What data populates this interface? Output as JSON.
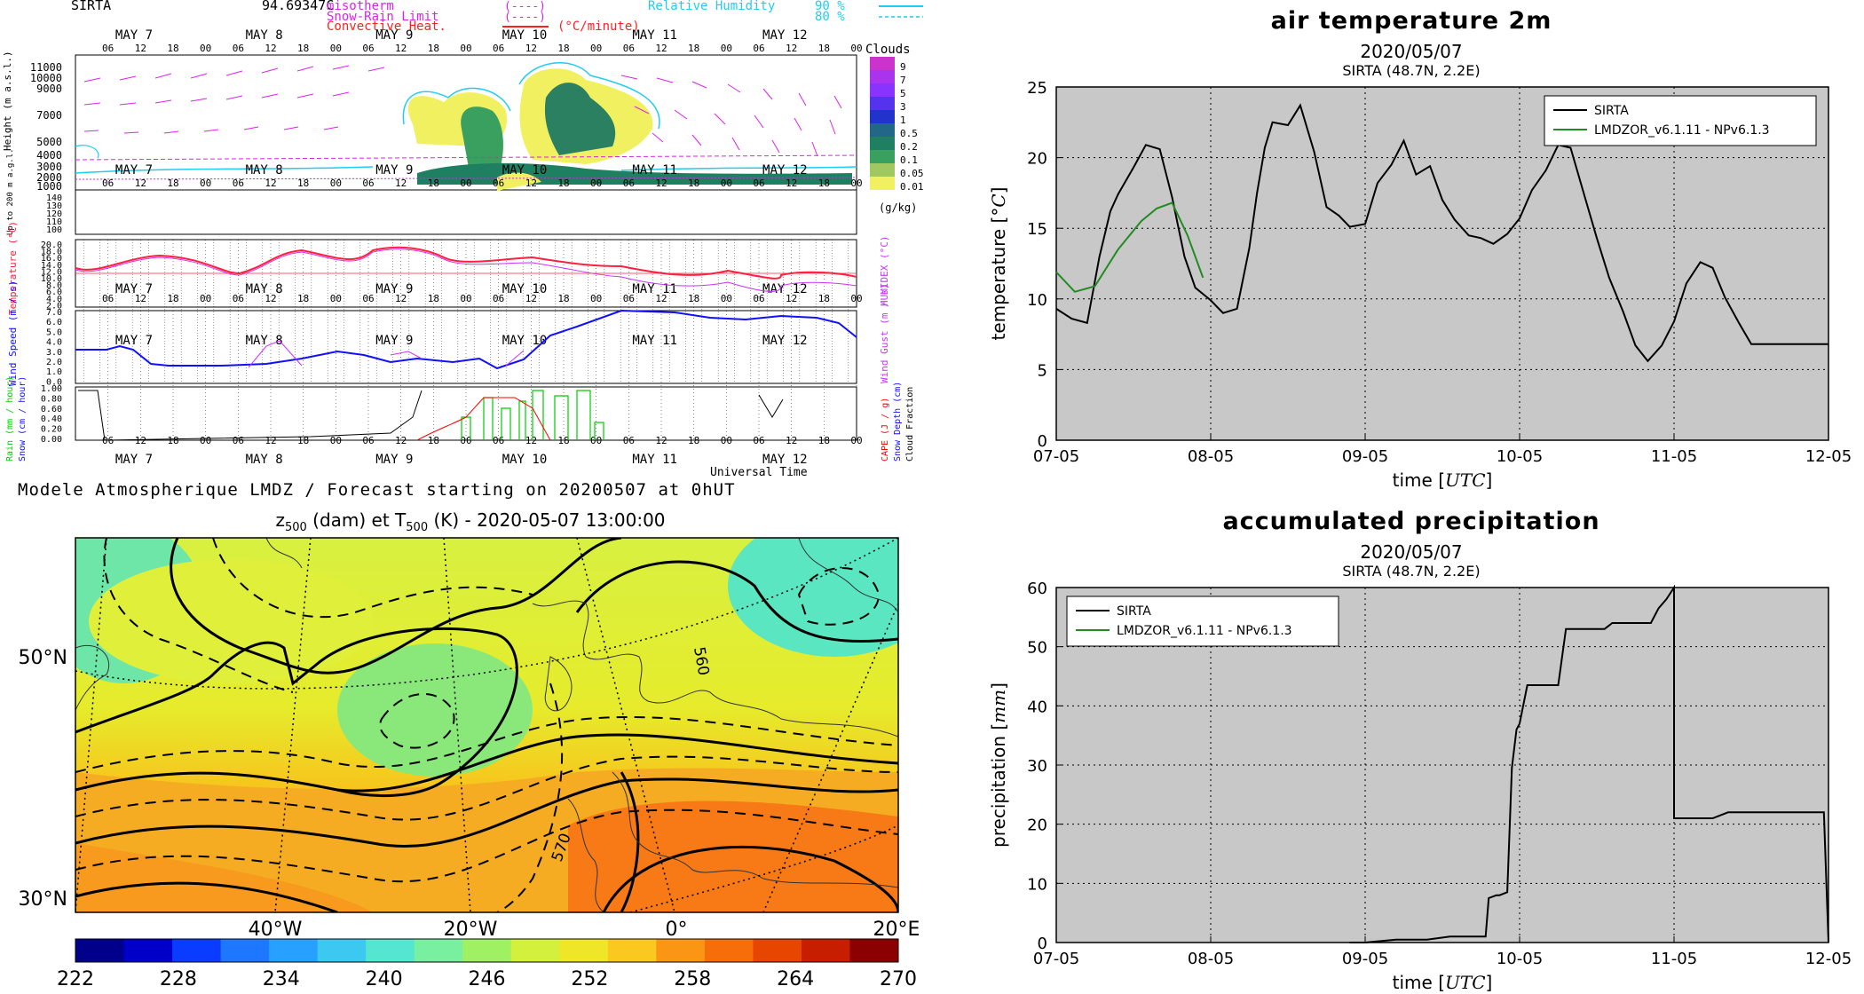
{
  "meteogram": {
    "station": "SIRTA",
    "elevation_text": "94.69347C",
    "legend": {
      "isotherm": "misotherm",
      "snow_rain": "Snow-Rain Limit",
      "convective": "Convective Heat.",
      "convective_unit": "(°C/minute)",
      "humidity": "Relative Humidity",
      "rh_90": "90 %",
      "rh_80": "80 %",
      "dashes": "(----)"
    },
    "day_labels": [
      "MAY  7",
      "MAY  8",
      "MAY  9",
      "MAY 10",
      "MAY 11",
      "MAY 12"
    ],
    "hour_labels": [
      "06",
      "12",
      "18",
      "00"
    ],
    "height_label": "Height (m a.s.l.)",
    "height_ticks": [
      "11000",
      "10000",
      "9000",
      "7000",
      "5000",
      "4000",
      "3000",
      "2000",
      "1000"
    ],
    "low_label": "Up to 200 m a.g.l.",
    "low_ticks": [
      "140",
      "130",
      "120",
      "110",
      "100"
    ],
    "clouds_title": "Clouds",
    "clouds_ticks": [
      "9",
      "7",
      "5",
      "3",
      "1",
      "0.5",
      "0.2",
      "0.1",
      "0.05",
      "0.01"
    ],
    "clouds_unit": "(g/kg)",
    "temp_label": "Temperature (°C)",
    "temp_ticks": [
      "20.0",
      "18.0",
      "16.0",
      "14.0",
      "12.0",
      "10.0",
      "8.0",
      "6.0",
      "4.0",
      "2.0"
    ],
    "humidex_label": "HUMIDEX (°C)",
    "wind_label": "Wind Speed (m / s)",
    "wind_ticks": [
      "7.0",
      "6.0",
      "5.0",
      "4.0",
      "3.0",
      "2.0",
      "1.0",
      "0.0"
    ],
    "gust_label": "Wind Gust (m / s)",
    "rain_ticks": [
      "1.00",
      "0.80",
      "0.60",
      "0.40",
      "0.20",
      "0.00"
    ],
    "rain_label": "Rain (mm / hour)",
    "snow_label": "Snow (cm / hour)",
    "cape_label": "CAPE (J / g)",
    "snowdepth_label": "Snow Depth (cm)",
    "cloudfrac_label": "Cloud Fraction",
    "universal_time": "Universal Time",
    "footer": "Modele Atmospherique LMDZ / Forecast starting on 20200507 at 0hUT",
    "colors": {
      "temperature": "#ff2040",
      "humidex": "#cc33ff",
      "wind": "#1010ff",
      "gust": "#cc33ff",
      "cloud_fraction": "#000000",
      "rain": "#00cc00",
      "cape": "#ff0000"
    }
  },
  "map": {
    "title_pre": "z",
    "title_sub1": "500",
    "title_mid": " (dam) et T",
    "title_sub2": "500",
    "title_post": " (K) - 2020-05-07 13:00:00",
    "lat_labels": [
      "50°N",
      "30°N"
    ],
    "lon_labels": [
      "40°W",
      "20°W",
      "0°",
      "20°E"
    ],
    "contour_labels": [
      "560",
      "570"
    ],
    "colorbar_ticks": [
      "222",
      "228",
      "234",
      "240",
      "246",
      "252",
      "258",
      "264",
      "270"
    ],
    "colorbar_colors": [
      "#00008b",
      "#0000c8",
      "#0a3cff",
      "#1e78ff",
      "#28a0ff",
      "#3cc8f0",
      "#55e6d2",
      "#78f0a0",
      "#a0f064",
      "#d2f03c",
      "#f0e628",
      "#fac81e",
      "#fa9614",
      "#f56e0a",
      "#e64600",
      "#c81e00",
      "#8b0000"
    ]
  },
  "chart_data": [
    {
      "type": "line",
      "title": "air temperature 2m",
      "subtitle": "2020/05/07",
      "subtitle2": "SIRTA (48.7N, 2.2E)",
      "xlabel": "time [UTC]",
      "ylabel": "temperature [°C]",
      "xlabel_parts": [
        "time ",
        "[",
        "UTC",
        "]"
      ],
      "ylabel_parts": [
        "temperature ",
        "[",
        "°C",
        "]"
      ],
      "x_ticks": [
        "07-05",
        "08-05",
        "09-05",
        "10-05",
        "11-05",
        "12-05"
      ],
      "ylim": [
        0,
        25
      ],
      "y_ticks": [
        "0",
        "5",
        "10",
        "15",
        "20",
        "25"
      ],
      "grid": true,
      "legend_position": "top-right",
      "series": [
        {
          "name": "SIRTA",
          "color": "#000000",
          "x": [
            0,
            0.1,
            0.2,
            0.28,
            0.35,
            0.4,
            0.5,
            0.58,
            0.67,
            0.75,
            0.83,
            0.9,
            1.0,
            1.08,
            1.17,
            1.25,
            1.3,
            1.35,
            1.4,
            1.5,
            1.58,
            1.67,
            1.75,
            1.83,
            1.9,
            2.0,
            2.08,
            2.17,
            2.25,
            2.33,
            2.42,
            2.5,
            2.58,
            2.67,
            2.75,
            2.83,
            2.92,
            3.0,
            3.08,
            3.17,
            3.25,
            3.33,
            3.42,
            3.5,
            3.58,
            3.67,
            3.75,
            3.83,
            3.92,
            4.0,
            4.08,
            4.17,
            4.25,
            4.33,
            4.42,
            4.5,
            4.58,
            4.67,
            4.75,
            4.83,
            4.92,
            5.0
          ],
          "y": [
            9.3,
            8.6,
            8.3,
            13.0,
            16.2,
            17.4,
            19.3,
            20.9,
            20.6,
            17.2,
            13.0,
            10.8,
            9.9,
            9.0,
            9.3,
            13.6,
            17.5,
            20.7,
            22.5,
            22.3,
            23.7,
            20.4,
            16.5,
            15.9,
            15.1,
            15.3,
            18.2,
            19.5,
            21.2,
            18.8,
            19.4,
            17.0,
            15.6,
            14.5,
            14.3,
            13.9,
            14.6,
            15.7,
            17.7,
            19.1,
            20.9,
            20.7,
            17.3,
            14.3,
            11.5,
            9.1,
            6.7,
            5.6,
            6.7,
            8.4,
            11.1,
            12.6,
            12.2,
            10.1,
            8.3,
            6.8,
            6.8,
            6.8,
            6.8,
            6.8,
            6.8,
            6.8
          ]
        },
        {
          "name": "LMDZOR_v6.1.11 - NPv6.1.3",
          "color": "#228b22",
          "x": [
            0.0,
            0.12,
            0.25,
            0.4,
            0.55,
            0.65,
            0.75,
            0.85,
            0.95
          ],
          "y": [
            11.9,
            10.5,
            10.9,
            13.5,
            15.5,
            16.4,
            16.8,
            14.5,
            11.5
          ]
        }
      ]
    },
    {
      "type": "line",
      "title": "accumulated precipitation",
      "subtitle": "2020/05/07",
      "subtitle2": "SIRTA (48.7N, 2.2E)",
      "xlabel": "time [UTC]",
      "ylabel": "precipitation [mm]",
      "xlabel_parts": [
        "time ",
        "[",
        "UTC",
        "]"
      ],
      "ylabel_parts": [
        "precipitation ",
        "[",
        "mm",
        "]"
      ],
      "x_ticks": [
        "07-05",
        "08-05",
        "09-05",
        "10-05",
        "11-05",
        "12-05"
      ],
      "ylim": [
        0,
        60
      ],
      "y_ticks": [
        "0",
        "10",
        "20",
        "30",
        "40",
        "50",
        "60"
      ],
      "grid": true,
      "legend_position": "top-left",
      "series": [
        {
          "name": "SIRTA",
          "color": "#000000",
          "x": [
            1.9,
            2.0,
            2.2,
            2.4,
            2.55,
            2.6,
            2.65,
            2.78,
            2.8,
            2.85,
            2.87,
            2.92,
            2.95,
            2.98,
            3.0,
            3.05,
            3.1,
            3.25,
            3.3,
            3.3,
            3.35,
            3.55,
            3.6,
            3.6,
            3.85,
            3.9,
            3.95,
            4.0,
            4.0,
            4.05,
            4.15,
            4.25,
            4.35,
            4.95,
            4.97,
            5.0
          ],
          "y": [
            0,
            0,
            0.5,
            0.5,
            1,
            1,
            1,
            1,
            7.5,
            8,
            8,
            8.5,
            29.5,
            36,
            37,
            43.5,
            43.5,
            43.5,
            53,
            53,
            53,
            53,
            54,
            54,
            54,
            56.5,
            58,
            60,
            21,
            21,
            21,
            21,
            22,
            22,
            22,
            0
          ]
        },
        {
          "name": "LMDZOR_v6.1.11 - NPv6.1.3",
          "color": "#228b22",
          "x": [],
          "y": []
        }
      ]
    }
  ]
}
